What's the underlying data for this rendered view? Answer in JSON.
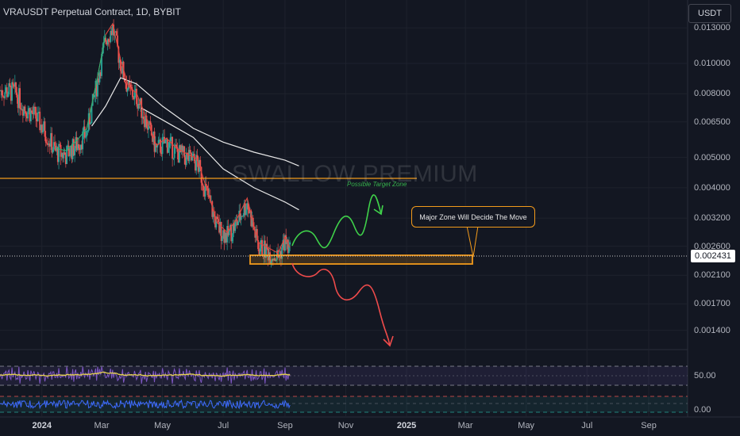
{
  "header": {
    "symbol_title": "VRAUSDT Perpetual Contract, 1D, BYBIT",
    "currency_button": "USDT"
  },
  "watermark": "SWALLOW PREMIUM",
  "annotations": {
    "target_zone_label": "Possible Target Zone",
    "callout_text": "Major Zone Will Decide The Move"
  },
  "current_price": "0.002431",
  "oscillator_labels": [
    "50.00",
    "0.00"
  ],
  "colors": {
    "background": "#131722",
    "candle_up": "#26a69a",
    "candle_down": "#ef5350",
    "zone_orange": "#f29a1b",
    "green_path": "#3fd24a",
    "red_path": "#ef4b4b",
    "ma_white": "#e8e8e8",
    "ma_red": "#e0473f",
    "ma_green": "#2bb673",
    "rsi_yellow": "#e8d44d",
    "osc_blue": "#3d6bff"
  },
  "chart_data": {
    "type": "line",
    "title": "VRAUSDT Perpetual Contract, 1D, BYBIT",
    "scale": "log",
    "y_tick_labels": [
      "0.013000",
      "0.010000",
      "0.008000",
      "0.006500",
      "0.005000",
      "0.004000",
      "0.003200",
      "0.002600",
      "0.002100",
      "0.001700",
      "0.001400"
    ],
    "y_ticks": [
      0.013,
      0.01,
      0.008,
      0.0065,
      0.005,
      0.004,
      0.0032,
      0.0026,
      0.0021,
      0.0017,
      0.0014
    ],
    "ylim": [
      0.00125,
      0.0155
    ],
    "x_range": [
      "2023-11-20",
      "2025-10-10"
    ],
    "x_tick_labels": [
      {
        "date": "2024-01-01",
        "label": "2024",
        "bold": true
      },
      {
        "date": "2024-03-01",
        "label": "Mar",
        "bold": false
      },
      {
        "date": "2024-05-01",
        "label": "May",
        "bold": false
      },
      {
        "date": "2024-07-01",
        "label": "Jul",
        "bold": false
      },
      {
        "date": "2024-09-01",
        "label": "Sep",
        "bold": false
      },
      {
        "date": "2024-11-01",
        "label": "Nov",
        "bold": false
      },
      {
        "date": "2025-01-01",
        "label": "2025",
        "bold": true
      },
      {
        "date": "2025-03-01",
        "label": "Mar",
        "bold": false
      },
      {
        "date": "2025-05-01",
        "label": "May",
        "bold": false
      },
      {
        "date": "2025-07-01",
        "label": "Jul",
        "bold": false
      },
      {
        "date": "2025-09-01",
        "label": "Sep",
        "bold": false
      }
    ],
    "series": [
      {
        "name": "",
        "role": "price_close",
        "dates": [
          "2023-11-20",
          "2023-12-05",
          "2023-12-15",
          "2023-12-25",
          "2024-01-05",
          "2024-01-15",
          "2024-01-25",
          "2024-02-05",
          "2024-02-15",
          "2024-02-25",
          "2024-03-05",
          "2024-03-12",
          "2024-03-20",
          "2024-03-28",
          "2024-04-05",
          "2024-04-15",
          "2024-04-25",
          "2024-05-05",
          "2024-05-15",
          "2024-05-25",
          "2024-06-05",
          "2024-06-15",
          "2024-06-25",
          "2024-07-05",
          "2024-07-15",
          "2024-07-25",
          "2024-08-05",
          "2024-08-15",
          "2024-08-25",
          "2024-09-01",
          "2024-09-06"
        ],
        "values": [
          0.0082,
          0.0081,
          0.0072,
          0.0068,
          0.006,
          0.0052,
          0.0051,
          0.0055,
          0.006,
          0.0085,
          0.012,
          0.013,
          0.01,
          0.0082,
          0.0078,
          0.0065,
          0.0053,
          0.0056,
          0.0052,
          0.005,
          0.0048,
          0.0038,
          0.003,
          0.0028,
          0.0031,
          0.0036,
          0.0026,
          0.0025,
          0.0024,
          0.0027,
          0.0025
        ]
      },
      {
        "name": "",
        "role": "ma_white",
        "dates": [
          "2024-02-20",
          "2024-03-05",
          "2024-03-20",
          "2024-04-05",
          "2024-05-01",
          "2024-06-01",
          "2024-07-01",
          "2024-08-01",
          "2024-09-01",
          "2024-09-15"
        ],
        "values": [
          0.0063,
          0.0073,
          0.009,
          0.0086,
          0.0073,
          0.0062,
          0.0056,
          0.0052,
          0.0049,
          0.0047
        ]
      },
      {
        "name": "",
        "role": "ma_white_2",
        "dates": [
          "2024-04-10",
          "2024-05-01",
          "2024-06-01",
          "2024-07-01",
          "2024-08-01",
          "2024-09-01",
          "2024-09-15"
        ],
        "values": [
          0.0072,
          0.0066,
          0.0058,
          0.0046,
          0.004,
          0.0036,
          0.0034
        ]
      }
    ],
    "horizontal_line": 0.00468,
    "zone": {
      "low": 0.00228,
      "high": 0.00246,
      "date_start": "2024-08-05",
      "date_end": "2025-03-10"
    },
    "oscillator": {
      "labels": [
        "50.00",
        "0.00"
      ]
    }
  }
}
